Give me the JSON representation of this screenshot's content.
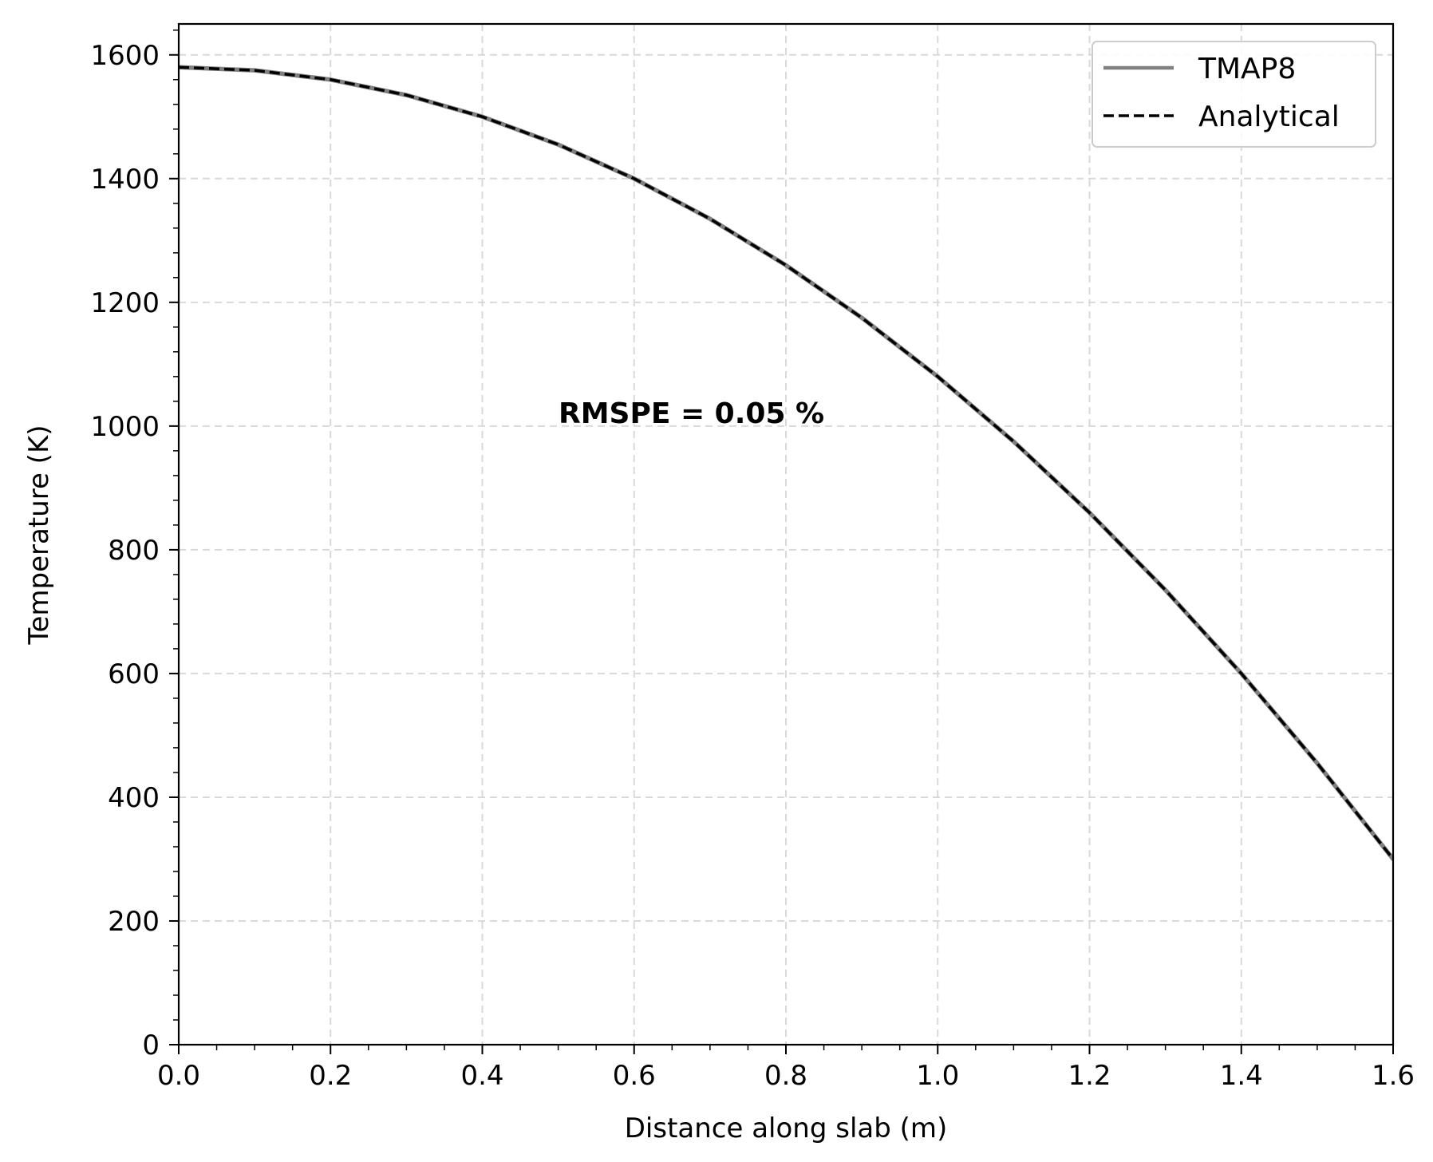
{
  "chart_data": {
    "type": "line",
    "xlabel": "Distance along slab (m)",
    "ylabel": "Temperature (K)",
    "xlim": [
      0.0,
      1.6
    ],
    "ylim": [
      0,
      1650
    ],
    "x_ticks": [
      "0.0",
      "0.2",
      "0.4",
      "0.6",
      "0.8",
      "1.0",
      "1.2",
      "1.4",
      "1.6"
    ],
    "y_ticks": [
      "0",
      "200",
      "400",
      "600",
      "800",
      "1000",
      "1200",
      "1400",
      "1600"
    ],
    "grid": true,
    "legend_position": "top-right",
    "annotation": "RMSPE = 0.05 %",
    "series": [
      {
        "name": "TMAP8",
        "color": "#808080",
        "style": "solid",
        "x": [
          0.0,
          0.1,
          0.2,
          0.3,
          0.4,
          0.5,
          0.6,
          0.7,
          0.8,
          0.9,
          1.0,
          1.1,
          1.2,
          1.3,
          1.4,
          1.5,
          1.6
        ],
        "y": [
          1580,
          1575,
          1560,
          1535,
          1500,
          1455,
          1400,
          1335,
          1260,
          1175,
          1080,
          975,
          860,
          735,
          600,
          455,
          300
        ]
      },
      {
        "name": "Analytical",
        "color": "#000000",
        "style": "dashed",
        "x": [
          0.0,
          0.1,
          0.2,
          0.3,
          0.4,
          0.5,
          0.6,
          0.7,
          0.8,
          0.9,
          1.0,
          1.1,
          1.2,
          1.3,
          1.4,
          1.5,
          1.6
        ],
        "y": [
          1580,
          1575,
          1560,
          1535,
          1500,
          1455,
          1400,
          1335,
          1260,
          1175,
          1080,
          975,
          860,
          735,
          600,
          455,
          300
        ]
      }
    ]
  }
}
